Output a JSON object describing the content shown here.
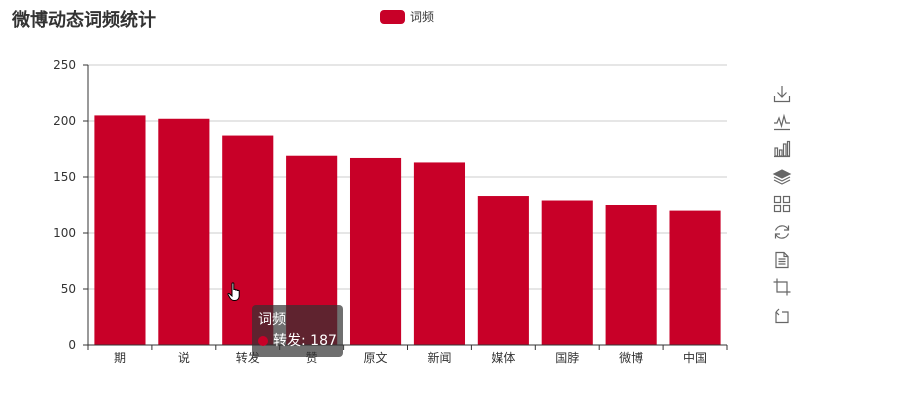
{
  "title": "微博动态词频统计",
  "legend": {
    "label": "词频",
    "color": "#c80028"
  },
  "chart_data": {
    "type": "bar",
    "categories": [
      "期",
      "说",
      "转发",
      "赞",
      "原文",
      "新闻",
      "媒体",
      "国脖",
      "微博",
      "中国"
    ],
    "series": [
      {
        "name": "词频",
        "values": [
          205,
          202,
          187,
          169,
          167,
          163,
          133,
          129,
          125,
          120
        ]
      }
    ],
    "ylim": [
      0,
      250
    ],
    "yticks": [
      0,
      50,
      100,
      150,
      200,
      250
    ],
    "grid": true,
    "legend_position": "top-center",
    "bar_color": "#c80028"
  },
  "tooltip": {
    "series_name": "词频",
    "category": "转发",
    "value": "187",
    "separator": ": "
  },
  "toolbox": {
    "icons": [
      "download-icon",
      "line-chart-icon",
      "bar-chart-icon",
      "stack-icon",
      "tiled-icon",
      "restore-icon",
      "data-view-icon",
      "zoom-icon",
      "zoom-reset-icon"
    ]
  }
}
